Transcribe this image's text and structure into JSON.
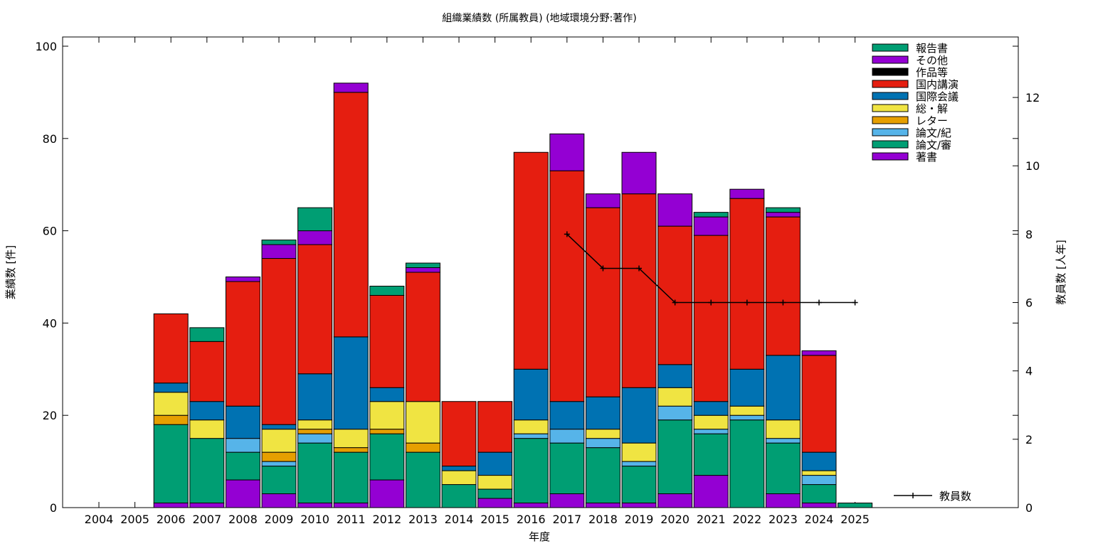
{
  "chart_data": {
    "type": "bar",
    "title": "組織業績数 (所属教員) (地域環境分野:著作)",
    "xlabel": "年度",
    "ylabel": "業績数 [件]",
    "y2label": "教員数 [人年]",
    "ylim": [
      0,
      102
    ],
    "y2lim": [
      0,
      13.77
    ],
    "yticks": [
      0,
      20,
      40,
      60,
      80,
      100
    ],
    "y2ticks": [
      0,
      2,
      4,
      6,
      8,
      10,
      12
    ],
    "legend_position": "top-right",
    "categories": [
      "2004",
      "2005",
      "2006",
      "2007",
      "2008",
      "2009",
      "2010",
      "2011",
      "2012",
      "2013",
      "2014",
      "2015",
      "2016",
      "2017",
      "2018",
      "2019",
      "2020",
      "2021",
      "2022",
      "2023",
      "2024",
      "2025"
    ],
    "series": [
      {
        "name": "著書",
        "color": "#9400d3",
        "values": [
          0,
          0,
          1,
          1,
          6,
          3,
          1,
          1,
          6,
          0,
          0,
          2,
          1,
          3,
          1,
          1,
          3,
          7,
          0,
          3,
          1,
          0
        ]
      },
      {
        "name": "論文/審",
        "color": "#009e73",
        "values": [
          0,
          0,
          17,
          14,
          6,
          6,
          13,
          11,
          10,
          12,
          5,
          2,
          14,
          11,
          12,
          8,
          16,
          9,
          19,
          11,
          4,
          1
        ]
      },
      {
        "name": "論文/紀",
        "color": "#56b4e9",
        "values": [
          0,
          0,
          0,
          0,
          3,
          1,
          2,
          0,
          0,
          0,
          0,
          0,
          1,
          3,
          2,
          1,
          3,
          1,
          1,
          1,
          2,
          0
        ]
      },
      {
        "name": "レター",
        "color": "#e69f00",
        "values": [
          0,
          0,
          2,
          0,
          0,
          2,
          1,
          1,
          1,
          2,
          0,
          0,
          0,
          0,
          0,
          0,
          0,
          0,
          0,
          0,
          0,
          0
        ]
      },
      {
        "name": "総・解",
        "color": "#f0e442",
        "values": [
          0,
          0,
          5,
          4,
          0,
          5,
          2,
          4,
          6,
          9,
          3,
          3,
          3,
          0,
          2,
          4,
          4,
          3,
          2,
          4,
          1,
          0
        ]
      },
      {
        "name": "国際会議",
        "color": "#0072b2",
        "values": [
          0,
          0,
          2,
          4,
          7,
          1,
          10,
          20,
          3,
          0,
          1,
          5,
          11,
          6,
          7,
          12,
          5,
          3,
          8,
          14,
          4,
          0
        ]
      },
      {
        "name": "国内講演",
        "color": "#e51e10",
        "values": [
          0,
          0,
          15,
          13,
          27,
          36,
          28,
          53,
          20,
          28,
          14,
          11,
          47,
          50,
          41,
          42,
          30,
          36,
          37,
          30,
          21,
          0
        ]
      },
      {
        "name": "作品等",
        "color": "#000000",
        "values": [
          0,
          0,
          0,
          0,
          0,
          0,
          0,
          0,
          0,
          0,
          0,
          0,
          0,
          0,
          0,
          0,
          0,
          0,
          0,
          0,
          0,
          0
        ]
      },
      {
        "name": "その他",
        "color": "#9400d3",
        "values": [
          0,
          0,
          0,
          0,
          1,
          3,
          3,
          2,
          0,
          1,
          0,
          0,
          0,
          8,
          3,
          9,
          7,
          4,
          2,
          1,
          1,
          0
        ]
      },
      {
        "name": "報告書",
        "color": "#009e73",
        "values": [
          0,
          0,
          0,
          3,
          0,
          1,
          5,
          0,
          2,
          1,
          0,
          0,
          0,
          0,
          0,
          0,
          0,
          1,
          0,
          1,
          0,
          0
        ]
      }
    ],
    "line_series": {
      "name": "教員数",
      "color": "#000000",
      "x": [
        "2017",
        "2018",
        "2019",
        "2020",
        "2021",
        "2022",
        "2023",
        "2024",
        "2025"
      ],
      "values": [
        8,
        7,
        7,
        6,
        6,
        6,
        6,
        6,
        6
      ]
    }
  }
}
